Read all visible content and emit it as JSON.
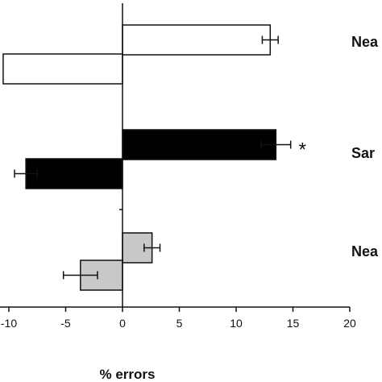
{
  "chart_data": {
    "type": "bar",
    "orientation": "horizontal",
    "title": "",
    "xlabel": "% errors",
    "ylabel": "",
    "xlim": [
      -10,
      20
    ],
    "x_ticks": [
      -10,
      -5,
      0,
      5,
      10,
      15,
      20
    ],
    "x_tick_labels": [
      "-10",
      "-5",
      "0",
      "5",
      "10",
      "15",
      "20"
    ],
    "grid": false,
    "legend": "none",
    "groups": [
      {
        "label": "Nea",
        "fill": "#ffffff",
        "bars": [
          {
            "value": 13.0,
            "error": 0.7,
            "significance": ""
          },
          {
            "value": -10.5,
            "error": null,
            "significance": ""
          }
        ]
      },
      {
        "label": "Sar",
        "fill": "#000000",
        "bars": [
          {
            "value": 13.5,
            "error": 1.3,
            "significance": "*"
          },
          {
            "value": -8.5,
            "error": 1.0,
            "significance": ""
          }
        ]
      },
      {
        "label": "Nea",
        "fill": "#c8c8c8",
        "bars": [
          {
            "value": 2.6,
            "error": 0.7,
            "significance": ""
          },
          {
            "value": -3.7,
            "error": 1.5,
            "significance": ""
          }
        ]
      }
    ]
  }
}
